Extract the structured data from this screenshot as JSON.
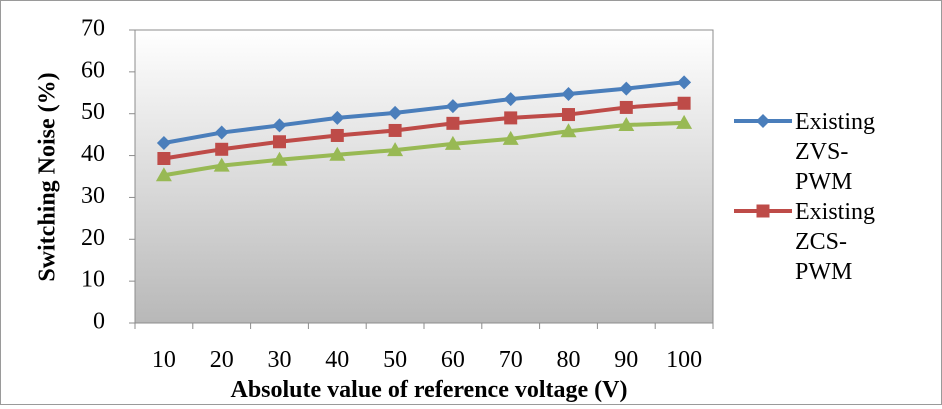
{
  "chart_data": {
    "type": "line",
    "title": "",
    "xlabel": "Absolute value of reference voltage (V)",
    "ylabel": "Switching Noise (%)",
    "categories": [
      "10",
      "20",
      "30",
      "40",
      "50",
      "60",
      "70",
      "80",
      "90",
      "100"
    ],
    "ylim": [
      0,
      70
    ],
    "yticks": [
      "0",
      "10",
      "20",
      "30",
      "40",
      "50",
      "60",
      "70"
    ],
    "grid": false,
    "legend_position": "right",
    "plot_background": "gradient light-to-dark gray",
    "series": [
      {
        "name": "Existing ZVS-PWM",
        "legend_lines": [
          "Existing",
          "ZVS-",
          "PWM"
        ],
        "color": "#4a7ebb",
        "marker": "diamond",
        "values": [
          43,
          45.5,
          47.2,
          49,
          50.2,
          51.8,
          53.5,
          54.7,
          56,
          57.5
        ]
      },
      {
        "name": "Existing ZCS-PWM",
        "legend_lines": [
          "Existing",
          "ZCS-",
          "PWM"
        ],
        "color": "#be4b48",
        "marker": "square",
        "values": [
          39.3,
          41.5,
          43.3,
          44.8,
          46,
          47.7,
          49,
          49.8,
          51.5,
          52.5
        ]
      },
      {
        "name": "",
        "color": "#98b954",
        "marker": "triangle",
        "values": [
          35.3,
          37.6,
          39,
          40.2,
          41.3,
          42.8,
          44,
          45.8,
          47.3,
          47.8
        ]
      }
    ]
  }
}
